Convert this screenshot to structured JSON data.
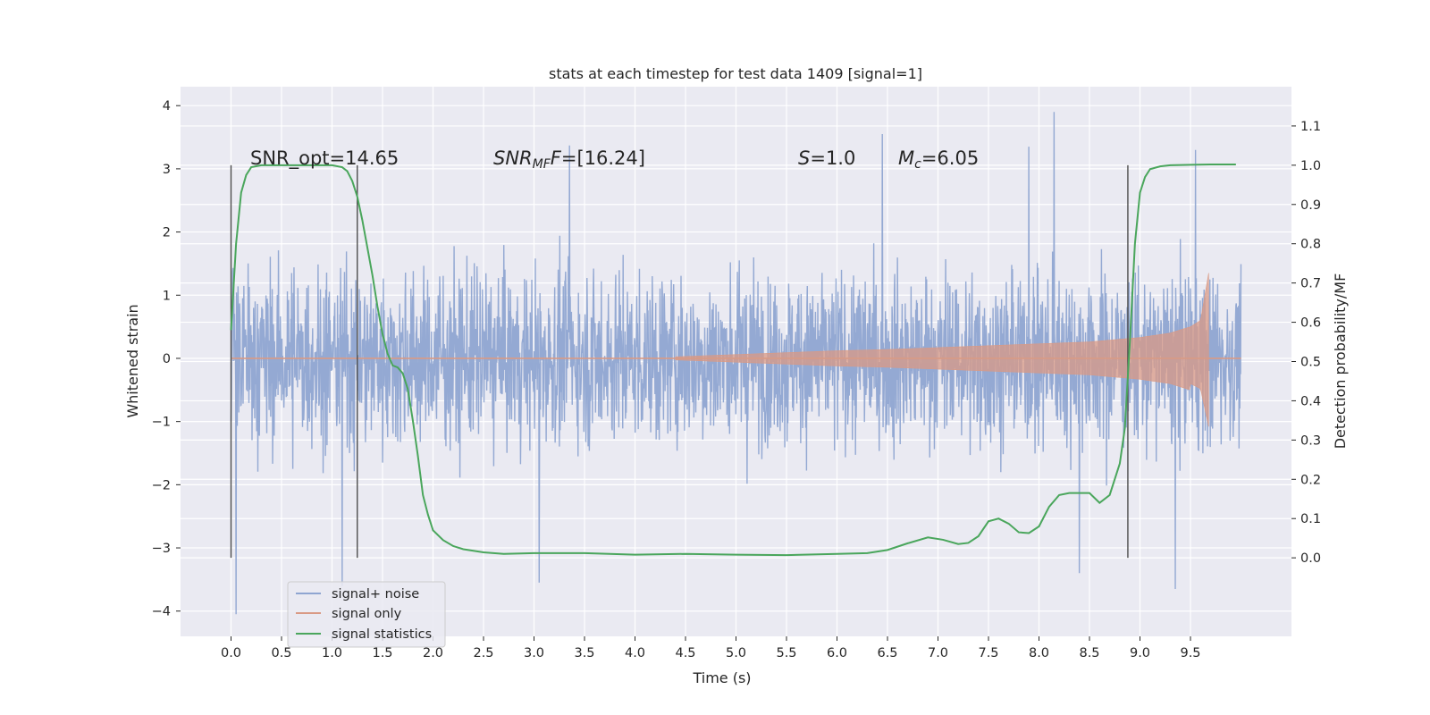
{
  "chart_data": {
    "type": "line",
    "title": "stats at each timestep for test data 1409 [signal=1]",
    "xlabel": "Time (s)",
    "ylabel_left": "Whitened strain",
    "ylabel_right": "Detection probability/MF",
    "xlim": [
      -0.5,
      10.5
    ],
    "ylim_left": [
      -4.4,
      4.3
    ],
    "ylim_right": [
      -0.2,
      1.2
    ],
    "x_ticks": [
      "0.0",
      "0.5",
      "1.0",
      "1.5",
      "2.0",
      "2.5",
      "3.0",
      "3.5",
      "4.0",
      "4.5",
      "5.0",
      "5.5",
      "6.0",
      "6.5",
      "7.0",
      "7.5",
      "8.0",
      "8.5",
      "9.0",
      "9.5"
    ],
    "x_tick_values": [
      0.0,
      0.5,
      1.0,
      1.5,
      2.0,
      2.5,
      3.0,
      3.5,
      4.0,
      4.5,
      5.0,
      5.5,
      6.0,
      6.5,
      7.0,
      7.5,
      8.0,
      8.5,
      9.0,
      9.5
    ],
    "y_ticks_left": [
      "−4",
      "−3",
      "−2",
      "−1",
      "0",
      "1",
      "2",
      "3",
      "4"
    ],
    "y_tick_values_left": [
      -4,
      -3,
      -2,
      -1,
      0,
      1,
      2,
      3,
      4
    ],
    "y_ticks_right": [
      "0.0",
      "0.1",
      "0.2",
      "0.3",
      "0.4",
      "0.5",
      "0.6",
      "0.7",
      "0.8",
      "0.9",
      "1.0",
      "1.1"
    ],
    "y_tick_values_right": [
      0.0,
      0.1,
      0.2,
      0.3,
      0.4,
      0.5,
      0.6,
      0.7,
      0.8,
      0.9,
      1.0,
      1.1
    ],
    "grid": true,
    "legend_position": "bottom-left",
    "annotations": {
      "snr_opt": "SNR_opt=14.65",
      "snr_mf_prefix": "SNR",
      "snr_mf_sub": "MF",
      "snr_mf_value": "=[16.24]",
      "s_prefix": "S",
      "s_value": "=1.0",
      "mc_prefix": "M",
      "mc_sub": "c",
      "mc_value": "=6.05"
    },
    "vertical_markers_x": [
      0.0,
      1.25,
      8.88
    ],
    "series": [
      {
        "name": "signal+ noise",
        "axis": "left",
        "color": "#8fa5d1",
        "style": "dense noise trace",
        "x_range": [
          0.0,
          10.0
        ],
        "typical_envelope": [
          -2.3,
          2.4
        ],
        "notable_peaks": [
          {
            "x": 0.05,
            "y": -4.05
          },
          {
            "x": 1.1,
            "y": -3.6
          },
          {
            "x": 3.35,
            "y": 3.37
          },
          {
            "x": 3.05,
            "y": -3.55
          },
          {
            "x": 6.45,
            "y": 3.55
          },
          {
            "x": 7.9,
            "y": 3.35
          },
          {
            "x": 8.15,
            "y": 3.9
          },
          {
            "x": 8.4,
            "y": -3.4
          },
          {
            "x": 9.35,
            "y": -3.65
          },
          {
            "x": 9.55,
            "y": 3.3
          }
        ]
      },
      {
        "name": "signal only",
        "axis": "left",
        "color": "#d99a85",
        "style": "chirp",
        "x": [
          0.0,
          1.0,
          2.0,
          3.0,
          4.0,
          4.5,
          5.0,
          5.5,
          6.0,
          6.5,
          7.0,
          7.5,
          8.0,
          8.5,
          9.0,
          9.3,
          9.5,
          9.6,
          9.68,
          9.7,
          10.0
        ],
        "amplitude": [
          0.0,
          0.0,
          0.0,
          0.0,
          0.0,
          0.03,
          0.06,
          0.09,
          0.12,
          0.14,
          0.17,
          0.2,
          0.23,
          0.26,
          0.33,
          0.4,
          0.5,
          0.6,
          1.35,
          0.0,
          0.0
        ]
      },
      {
        "name": "signal statistics",
        "axis": "right",
        "color": "#4aa65c",
        "x": [
          0.0,
          0.05,
          0.1,
          0.15,
          0.2,
          0.3,
          0.4,
          0.6,
          0.8,
          1.0,
          1.1,
          1.15,
          1.2,
          1.25,
          1.3,
          1.35,
          1.4,
          1.45,
          1.5,
          1.55,
          1.6,
          1.65,
          1.7,
          1.75,
          1.8,
          1.85,
          1.9,
          1.95,
          2.0,
          2.1,
          2.2,
          2.3,
          2.5,
          2.7,
          3.0,
          3.5,
          4.0,
          4.5,
          5.0,
          5.5,
          6.0,
          6.3,
          6.5,
          6.7,
          6.9,
          7.05,
          7.2,
          7.3,
          7.4,
          7.5,
          7.6,
          7.7,
          7.8,
          7.9,
          8.0,
          8.1,
          8.2,
          8.3,
          8.4,
          8.5,
          8.6,
          8.7,
          8.8,
          8.85,
          8.9,
          8.95,
          9.0,
          9.05,
          9.1,
          9.2,
          9.3,
          9.5,
          9.7,
          9.95
        ],
        "y": [
          0.58,
          0.8,
          0.93,
          0.975,
          0.995,
          1.0,
          1.0,
          1.0,
          1.0,
          1.0,
          0.995,
          0.985,
          0.96,
          0.92,
          0.86,
          0.79,
          0.72,
          0.64,
          0.57,
          0.52,
          0.49,
          0.485,
          0.47,
          0.43,
          0.35,
          0.26,
          0.16,
          0.11,
          0.07,
          0.045,
          0.03,
          0.022,
          0.014,
          0.01,
          0.012,
          0.012,
          0.008,
          0.01,
          0.008,
          0.007,
          0.01,
          0.012,
          0.02,
          0.037,
          0.052,
          0.046,
          0.035,
          0.038,
          0.055,
          0.093,
          0.1,
          0.087,
          0.065,
          0.063,
          0.08,
          0.13,
          0.16,
          0.165,
          0.165,
          0.165,
          0.14,
          0.16,
          0.24,
          0.33,
          0.55,
          0.8,
          0.93,
          0.97,
          0.99,
          0.997,
          1.0,
          1.001,
          1.002,
          1.002
        ]
      }
    ]
  }
}
